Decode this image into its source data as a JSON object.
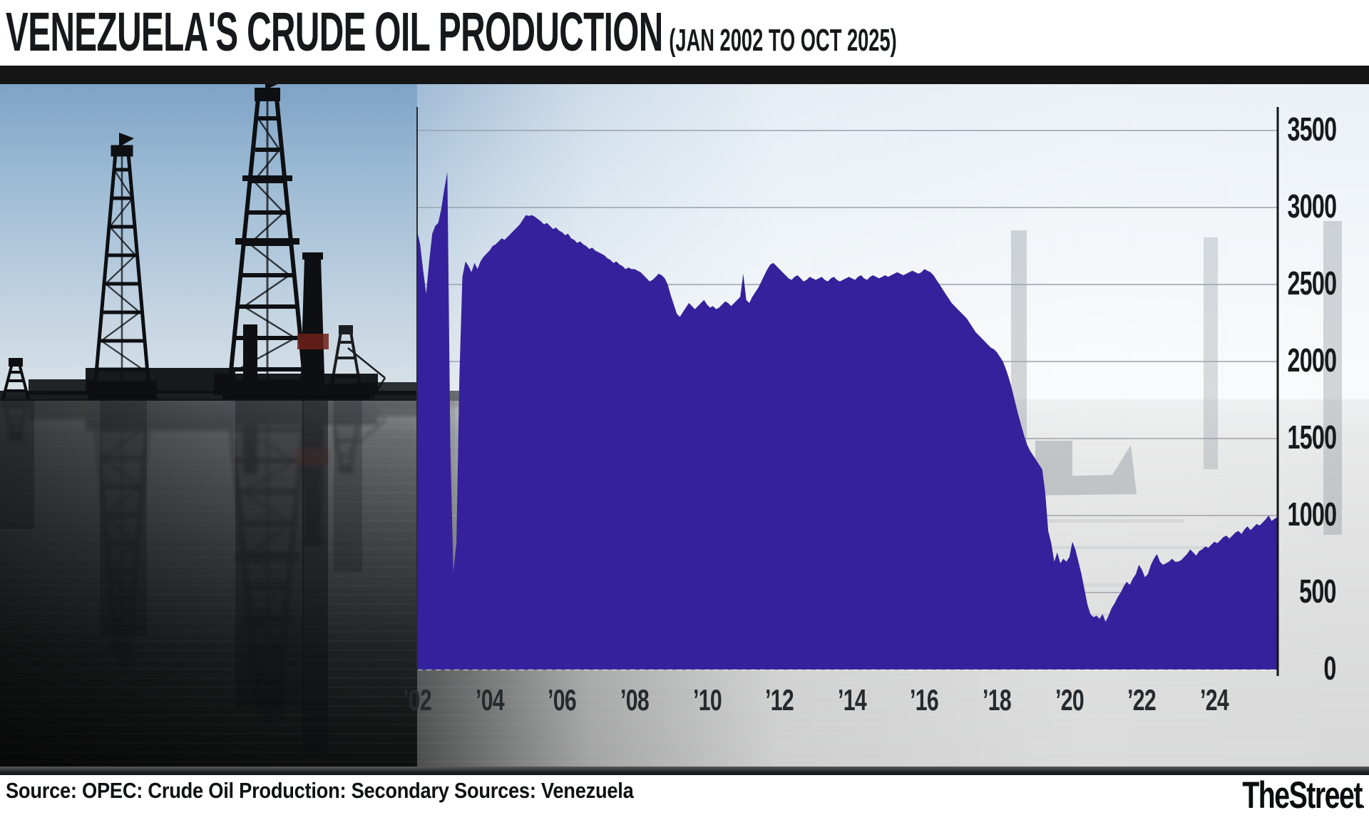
{
  "header": {
    "title_main": "VENEZUELA'S CRUDE OIL PRODUCTION",
    "title_range": "(JAN 2002 TO OCT 2025)"
  },
  "footer": {
    "source": "Source: OPEC: Crude Oil Production: Secondary Sources: Venezuela",
    "brand": "TheStreet",
    "brand_suffix": "."
  },
  "colors": {
    "series_purple": "#35219c",
    "grid": "#9aa1a9",
    "axis": "#131517",
    "header_bar": "#161616",
    "label_dark": "#17191c"
  },
  "chart_data": {
    "type": "area",
    "title": "Venezuela's Crude Oil Production (Jan 2002 to Oct 2025)",
    "start": "2002-01",
    "end": "2025-10",
    "ylim": [
      0,
      3500
    ],
    "grid": true,
    "legend": "none",
    "y_ticks": [
      3500,
      3000,
      2500,
      2000,
      1500,
      1000,
      500,
      0
    ],
    "x_tick_years": [
      2002,
      2004,
      2006,
      2008,
      2010,
      2012,
      2014,
      2016,
      2018,
      2020,
      2022,
      2024
    ],
    "x_tick_labels": [
      "’02",
      "’04",
      "’06",
      "’08",
      "’10",
      "’12",
      "’14",
      "’16",
      "’18",
      "’20",
      "’22",
      "’24"
    ],
    "series_color": "#35219c",
    "series": [
      {
        "year": 2002,
        "values": [
          2850,
          2760,
          2590,
          2440,
          2650,
          2830,
          2880,
          2900,
          2990,
          3120,
          3230,
          1450
        ]
      },
      {
        "year": 2003,
        "values": [
          630,
          820,
          1900,
          2550,
          2650,
          2620,
          2580,
          2640,
          2600,
          2650,
          2680,
          2700
        ]
      },
      {
        "year": 2004,
        "values": [
          2720,
          2750,
          2760,
          2780,
          2800,
          2790,
          2810,
          2830,
          2850,
          2870,
          2890,
          2920
        ]
      },
      {
        "year": 2005,
        "values": [
          2950,
          2945,
          2950,
          2940,
          2925,
          2910,
          2890,
          2900,
          2880,
          2860,
          2870,
          2850
        ]
      },
      {
        "year": 2006,
        "values": [
          2840,
          2820,
          2830,
          2800,
          2790,
          2770,
          2780,
          2760,
          2750,
          2730,
          2740,
          2720
        ]
      },
      {
        "year": 2007,
        "values": [
          2710,
          2700,
          2690,
          2670,
          2660,
          2640,
          2650,
          2630,
          2620,
          2600,
          2610,
          2600
        ]
      },
      {
        "year": 2008,
        "values": [
          2600,
          2590,
          2580,
          2560,
          2540,
          2520,
          2530,
          2550,
          2570,
          2560,
          2540,
          2500
        ]
      },
      {
        "year": 2009,
        "values": [
          2430,
          2370,
          2310,
          2290,
          2320,
          2350,
          2380,
          2360,
          2340,
          2360,
          2380,
          2400
        ]
      },
      {
        "year": 2010,
        "values": [
          2370,
          2350,
          2360,
          2340,
          2350,
          2370,
          2390,
          2380,
          2360,
          2380,
          2400,
          2420
        ]
      },
      {
        "year": 2011,
        "values": [
          2570,
          2400,
          2380,
          2420,
          2450,
          2480,
          2520,
          2560,
          2600,
          2630,
          2640,
          2620
        ]
      },
      {
        "year": 2012,
        "values": [
          2600,
          2580,
          2560,
          2540,
          2530,
          2550,
          2560,
          2540,
          2520,
          2530,
          2550,
          2540
        ]
      },
      {
        "year": 2013,
        "values": [
          2530,
          2540,
          2550,
          2530,
          2520,
          2540,
          2550,
          2530,
          2520,
          2530,
          2540,
          2550
        ]
      },
      {
        "year": 2014,
        "values": [
          2540,
          2530,
          2550,
          2560,
          2540,
          2530,
          2550,
          2560,
          2550,
          2540,
          2550,
          2560
        ]
      },
      {
        "year": 2015,
        "values": [
          2550,
          2560,
          2570,
          2580,
          2570,
          2560,
          2570,
          2580,
          2590,
          2580,
          2570,
          2580
        ]
      },
      {
        "year": 2016,
        "values": [
          2600,
          2590,
          2580,
          2560,
          2530,
          2500,
          2470,
          2440,
          2410,
          2380,
          2360,
          2340
        ]
      },
      {
        "year": 2017,
        "values": [
          2320,
          2300,
          2280,
          2250,
          2220,
          2190,
          2170,
          2150,
          2130,
          2110,
          2090,
          2080
        ]
      },
      {
        "year": 2018,
        "values": [
          2060,
          2030,
          2000,
          1950,
          1890,
          1820,
          1740,
          1660,
          1590,
          1520,
          1460,
          1420
        ]
      },
      {
        "year": 2019,
        "values": [
          1390,
          1360,
          1330,
          1300,
          1150,
          900,
          820,
          700,
          760,
          690,
          720,
          700
        ]
      },
      {
        "year": 2020,
        "values": [
          730,
          830,
          780,
          700,
          620,
          520,
          420,
          360,
          340,
          350,
          330,
          360
        ]
      },
      {
        "year": 2021,
        "values": [
          310,
          350,
          400,
          430,
          470,
          500,
          540,
          570,
          550,
          590,
          620,
          680
        ]
      },
      {
        "year": 2022,
        "values": [
          650,
          600,
          620,
          680,
          720,
          750,
          700,
          680,
          690,
          700,
          720,
          700
        ]
      },
      {
        "year": 2023,
        "values": [
          700,
          710,
          730,
          750,
          780,
          760,
          740,
          770,
          780,
          800,
          790,
          810
        ]
      },
      {
        "year": 2024,
        "values": [
          830,
          820,
          840,
          860,
          870,
          850,
          870,
          890,
          900,
          880,
          910,
          930
        ]
      },
      {
        "year": 2025,
        "values": [
          905,
          925,
          945,
          935,
          955,
          975,
          1000,
          965,
          980,
          990
        ]
      }
    ]
  }
}
